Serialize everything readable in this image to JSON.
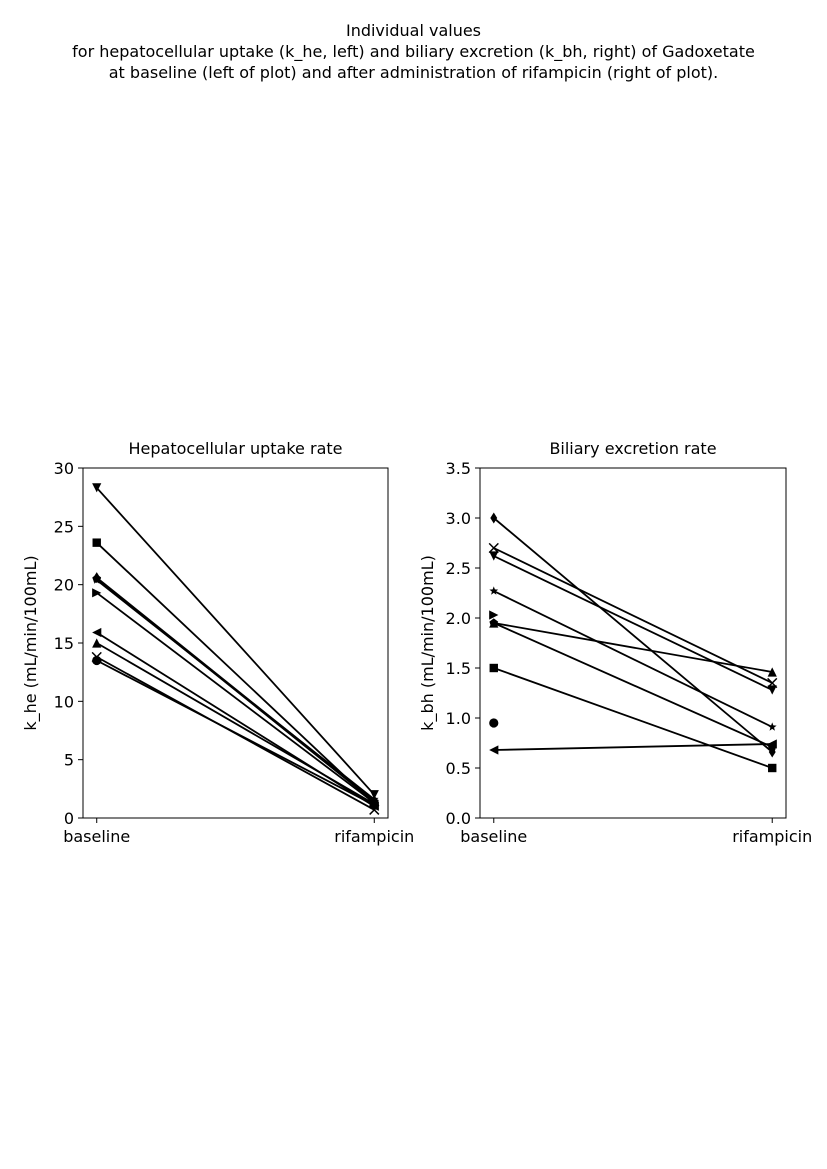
{
  "figure": {
    "title_lines": [
      "Individual values",
      "for hepatocellular uptake (k_he, left) and biliary excretion (k_bh, right) of Gadoxetate",
      "at baseline (left of plot) and after administration of rifampicin (right of plot)."
    ]
  },
  "chart_data": [
    {
      "type": "line",
      "title": "Hepatocellular uptake rate",
      "xlabel": "",
      "ylabel": "k_he (mL/min/100mL)",
      "categories": [
        "baseline",
        "rifampicin"
      ],
      "ylim": [
        0,
        30
      ],
      "yticks": [
        "0",
        "5",
        "10",
        "15",
        "20",
        "25",
        "30"
      ],
      "grid": false,
      "color": "#000000",
      "series": [
        {
          "marker": "circle",
          "values": [
            13.5,
            1.1
          ]
        },
        {
          "marker": "square",
          "values": [
            23.6,
            1.2
          ]
        },
        {
          "marker": "triangle-down",
          "values": [
            28.3,
            2.0
          ]
        },
        {
          "marker": "diamond",
          "values": [
            20.6,
            1.5
          ]
        },
        {
          "marker": "x",
          "values": [
            13.8,
            0.7
          ]
        },
        {
          "marker": "triangle-right",
          "values": [
            19.3,
            1.3
          ]
        },
        {
          "marker": "triangle-left",
          "values": [
            15.9,
            1.0
          ]
        },
        {
          "marker": "triangle-up",
          "values": [
            15.0,
            1.2
          ]
        },
        {
          "marker": "star",
          "values": [
            20.4,
            1.6
          ]
        },
        {
          "marker": "pentagon",
          "values": [
            20.5,
            1.4
          ]
        }
      ]
    },
    {
      "type": "line",
      "title": "Biliary excretion rate",
      "xlabel": "",
      "ylabel": "k_bh (mL/min/100mL)",
      "categories": [
        "baseline",
        "rifampicin"
      ],
      "ylim": [
        0,
        3.5
      ],
      "yticks": [
        "0.0",
        "0.5",
        "1.0",
        "1.5",
        "2.0",
        "2.5",
        "3.0",
        "3.5"
      ],
      "grid": false,
      "color": "#000000",
      "series": [
        {
          "marker": "circle",
          "values": [
            0.95,
            null
          ]
        },
        {
          "marker": "square",
          "values": [
            1.5,
            0.5
          ]
        },
        {
          "marker": "triangle-down",
          "values": [
            2.62,
            1.28
          ]
        },
        {
          "marker": "diamond",
          "values": [
            3.0,
            0.66
          ]
        },
        {
          "marker": "x",
          "values": [
            2.7,
            1.35
          ]
        },
        {
          "marker": "triangle-right",
          "values": [
            2.03,
            null
          ]
        },
        {
          "marker": "triangle-left",
          "values": [
            0.68,
            0.74
          ]
        },
        {
          "marker": "triangle-up",
          "values": [
            1.95,
            1.46
          ]
        },
        {
          "marker": "star",
          "values": [
            2.27,
            0.91
          ]
        },
        {
          "marker": "pentagon",
          "values": [
            1.95,
            0.71
          ]
        }
      ]
    }
  ]
}
